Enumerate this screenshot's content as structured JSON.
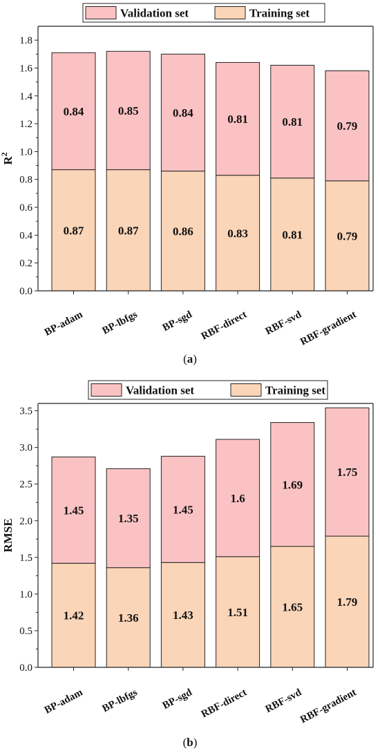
{
  "chart_data": [
    {
      "type": "bar",
      "stacked": true,
      "caption": "(a)",
      "ylabel": "R",
      "ylabel_superscript": "2",
      "xlabel": "",
      "categories": [
        "BP-adam",
        "BP-lbfgs",
        "BP-sgd",
        "RBF-direct",
        "RBF-svd",
        "RBF-gradient"
      ],
      "series": [
        {
          "name": "Training set",
          "color": "#fad5b8",
          "values": [
            0.87,
            0.87,
            0.86,
            0.83,
            0.81,
            0.79
          ]
        },
        {
          "name": "Validation set",
          "color": "#fbc2c4",
          "values": [
            0.84,
            0.85,
            0.84,
            0.81,
            0.81,
            0.79
          ]
        }
      ],
      "data_labels": {
        "Training set": [
          "0.87",
          "0.87",
          "0.86",
          "0.83",
          "0.81",
          "0.79"
        ],
        "Validation set": [
          "0.84",
          "0.85",
          "0.84",
          "0.81",
          "0.81",
          "0.79"
        ]
      },
      "ylim": [
        0,
        1.9
      ],
      "yticks": [
        "0.0",
        "0.2",
        "0.4",
        "0.6",
        "0.8",
        "1.0",
        "1.2",
        "1.4",
        "1.6",
        "1.8"
      ],
      "legend_order": [
        "Validation set",
        "Training set"
      ],
      "legend_position": "top",
      "grid": false
    },
    {
      "type": "bar",
      "stacked": true,
      "caption": "(b)",
      "ylabel": "RMSE",
      "xlabel": "",
      "categories": [
        "BP-adam",
        "BP-lbfgs",
        "BP-sgd",
        "RBF-direct",
        "RBF-svd",
        "RBF-gradient"
      ],
      "series": [
        {
          "name": "Training set",
          "color": "#fad5b8",
          "values": [
            1.42,
            1.36,
            1.43,
            1.51,
            1.65,
            1.79
          ]
        },
        {
          "name": "Validation set",
          "color": "#fbc2c4",
          "values": [
            1.45,
            1.35,
            1.45,
            1.6,
            1.69,
            1.75
          ]
        }
      ],
      "data_labels": {
        "Training set": [
          "1.42",
          "1.36",
          "1.43",
          "1.51",
          "1.65",
          "1.79"
        ],
        "Validation set": [
          "1.45",
          "1.35",
          "1.45",
          "1.6",
          "1.69",
          "1.75"
        ]
      },
      "ylim": [
        0,
        3.6
      ],
      "yticks": [
        "0.0",
        "0.5",
        "1.0",
        "1.5",
        "2.0",
        "2.5",
        "3.0",
        "3.5"
      ],
      "legend_order": [
        "Validation set",
        "Training set"
      ],
      "legend_position": "top",
      "grid": false
    }
  ]
}
